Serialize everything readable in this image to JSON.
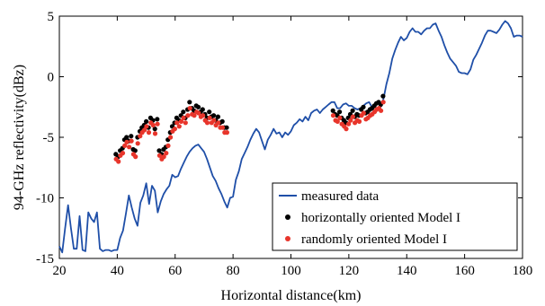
{
  "chart_data": {
    "type": "line",
    "xlabel": "Horizontal distance(km)",
    "ylabel": "94-GHz reflectivity(dBz)",
    "xlim": [
      20,
      180
    ],
    "ylim": [
      -15,
      5
    ],
    "xticks": [
      20,
      40,
      60,
      80,
      100,
      120,
      140,
      160,
      180
    ],
    "yticks": [
      5,
      0,
      -5,
      -10,
      -15
    ],
    "legend_position": "bottom-right",
    "series": [
      {
        "name": "measured data",
        "style": "line",
        "color": "#1f4fa8",
        "points": [
          [
            20,
            -14.0
          ],
          [
            21,
            -14.5
          ],
          [
            22,
            -12.5
          ],
          [
            23,
            -10.6
          ],
          [
            24,
            -12.5
          ],
          [
            25,
            -14.2
          ],
          [
            26,
            -14.2
          ],
          [
            27,
            -11.5
          ],
          [
            28,
            -14.3
          ],
          [
            29,
            -14.4
          ],
          [
            30,
            -11.2
          ],
          [
            31,
            -11.7
          ],
          [
            32,
            -12.0
          ],
          [
            33,
            -11.2
          ],
          [
            34,
            -14.2
          ],
          [
            35,
            -14.4
          ],
          [
            36,
            -14.3
          ],
          [
            37,
            -14.3
          ],
          [
            38,
            -14.4
          ],
          [
            39,
            -14.3
          ],
          [
            40,
            -14.3
          ],
          [
            41,
            -13.3
          ],
          [
            42,
            -12.7
          ],
          [
            43,
            -11.3
          ],
          [
            44,
            -9.8
          ],
          [
            45,
            -10.8
          ],
          [
            46,
            -11.7
          ],
          [
            47,
            -12.3
          ],
          [
            48,
            -10.4
          ],
          [
            49,
            -9.8
          ],
          [
            50,
            -8.8
          ],
          [
            51,
            -10.5
          ],
          [
            52,
            -9.0
          ],
          [
            53,
            -9.4
          ],
          [
            54,
            -11.2
          ],
          [
            55,
            -10.3
          ],
          [
            56,
            -9.7
          ],
          [
            57,
            -9.3
          ],
          [
            58,
            -9.0
          ],
          [
            59,
            -8.1
          ],
          [
            60,
            -8.3
          ],
          [
            61,
            -8.2
          ],
          [
            62,
            -7.6
          ],
          [
            63,
            -7.1
          ],
          [
            64,
            -6.6
          ],
          [
            65,
            -6.2
          ],
          [
            66,
            -5.9
          ],
          [
            67,
            -5.7
          ],
          [
            68,
            -5.6
          ],
          [
            69,
            -5.9
          ],
          [
            70,
            -6.2
          ],
          [
            71,
            -6.8
          ],
          [
            72,
            -7.5
          ],
          [
            73,
            -8.2
          ],
          [
            74,
            -8.6
          ],
          [
            75,
            -9.2
          ],
          [
            76,
            -9.7
          ],
          [
            77,
            -10.3
          ],
          [
            78,
            -10.8
          ],
          [
            79,
            -10.0
          ],
          [
            80,
            -9.9
          ],
          [
            81,
            -8.5
          ],
          [
            82,
            -7.8
          ],
          [
            83,
            -6.8
          ],
          [
            84,
            -6.3
          ],
          [
            85,
            -5.8
          ],
          [
            86,
            -5.2
          ],
          [
            87,
            -4.7
          ],
          [
            88,
            -4.3
          ],
          [
            89,
            -4.6
          ],
          [
            90,
            -5.3
          ],
          [
            91,
            -6.0
          ],
          [
            92,
            -5.2
          ],
          [
            93,
            -4.8
          ],
          [
            94,
            -4.3
          ],
          [
            95,
            -4.7
          ],
          [
            96,
            -4.6
          ],
          [
            97,
            -5.0
          ],
          [
            98,
            -4.6
          ],
          [
            99,
            -4.8
          ],
          [
            100,
            -4.5
          ],
          [
            101,
            -4.0
          ],
          [
            102,
            -3.8
          ],
          [
            103,
            -3.5
          ],
          [
            104,
            -3.7
          ],
          [
            105,
            -3.3
          ],
          [
            106,
            -3.6
          ],
          [
            107,
            -3.0
          ],
          [
            108,
            -2.8
          ],
          [
            109,
            -2.7
          ],
          [
            110,
            -3.0
          ],
          [
            111,
            -2.7
          ],
          [
            112,
            -2.5
          ],
          [
            113,
            -2.3
          ],
          [
            114,
            -2.1
          ],
          [
            115,
            -2.1
          ],
          [
            116,
            -2.6
          ],
          [
            117,
            -2.6
          ],
          [
            118,
            -2.3
          ],
          [
            119,
            -2.2
          ],
          [
            120,
            -2.4
          ],
          [
            121,
            -2.4
          ],
          [
            122,
            -2.6
          ],
          [
            123,
            -2.7
          ],
          [
            124,
            -2.6
          ],
          [
            125,
            -2.4
          ],
          [
            126,
            -2.2
          ],
          [
            127,
            -2.1
          ],
          [
            128,
            -2.5
          ],
          [
            129,
            -2.5
          ],
          [
            130,
            -2.7
          ],
          [
            131,
            -2.5
          ],
          [
            132,
            -1.8
          ],
          [
            133,
            -0.6
          ],
          [
            134,
            0.3
          ],
          [
            135,
            1.5
          ],
          [
            136,
            2.2
          ],
          [
            137,
            2.8
          ],
          [
            138,
            3.3
          ],
          [
            139,
            3.0
          ],
          [
            140,
            3.2
          ],
          [
            141,
            3.7
          ],
          [
            142,
            4.0
          ],
          [
            143,
            3.7
          ],
          [
            144,
            3.7
          ],
          [
            145,
            3.5
          ],
          [
            146,
            3.8
          ],
          [
            147,
            4.0
          ],
          [
            148,
            4.0
          ],
          [
            149,
            4.3
          ],
          [
            150,
            4.4
          ],
          [
            151,
            3.8
          ],
          [
            152,
            3.3
          ],
          [
            153,
            2.6
          ],
          [
            154,
            2.0
          ],
          [
            155,
            1.5
          ],
          [
            156,
            1.2
          ],
          [
            157,
            0.9
          ],
          [
            158,
            0.4
          ],
          [
            159,
            0.3
          ],
          [
            160,
            0.3
          ],
          [
            161,
            0.2
          ],
          [
            162,
            0.6
          ],
          [
            163,
            1.4
          ],
          [
            164,
            1.8
          ],
          [
            165,
            2.3
          ],
          [
            166,
            2.8
          ],
          [
            167,
            3.4
          ],
          [
            168,
            3.8
          ],
          [
            169,
            3.8
          ],
          [
            170,
            3.7
          ],
          [
            171,
            3.6
          ],
          [
            172,
            3.9
          ],
          [
            173,
            4.3
          ],
          [
            174,
            4.6
          ],
          [
            175,
            4.4
          ],
          [
            176,
            4.0
          ],
          [
            177,
            3.3
          ],
          [
            178,
            3.4
          ],
          [
            179,
            3.4
          ],
          [
            180,
            3.3
          ]
        ]
      },
      {
        "name": "horizontally oriented Model I",
        "style": "markers",
        "color": "#000000",
        "points": [
          [
            39.5,
            -6.4
          ],
          [
            40.3,
            -6.6
          ],
          [
            41.0,
            -6.1
          ],
          [
            41.8,
            -5.9
          ],
          [
            42.5,
            -5.2
          ],
          [
            43.2,
            -5.0
          ],
          [
            44.0,
            -5.3
          ],
          [
            44.8,
            -4.9
          ],
          [
            45.5,
            -6.0
          ],
          [
            46.2,
            -6.1
          ],
          [
            47.0,
            -5.0
          ],
          [
            47.8,
            -4.5
          ],
          [
            48.5,
            -4.2
          ],
          [
            49.3,
            -4.0
          ],
          [
            50.0,
            -3.7
          ],
          [
            50.8,
            -4.2
          ],
          [
            51.5,
            -3.4
          ],
          [
            52.3,
            -3.6
          ],
          [
            53.0,
            -4.3
          ],
          [
            53.8,
            -3.5
          ],
          [
            54.5,
            -6.1
          ],
          [
            55.3,
            -6.4
          ],
          [
            56.0,
            -6.0
          ],
          [
            56.8,
            -5.8
          ],
          [
            57.5,
            -5.2
          ],
          [
            58.3,
            -4.6
          ],
          [
            59.0,
            -4.1
          ],
          [
            59.8,
            -3.8
          ],
          [
            60.5,
            -3.4
          ],
          [
            61.3,
            -3.6
          ],
          [
            62.0,
            -3.2
          ],
          [
            62.8,
            -2.9
          ],
          [
            63.5,
            -3.4
          ],
          [
            64.3,
            -2.7
          ],
          [
            65.0,
            -2.1
          ],
          [
            65.8,
            -2.6
          ],
          [
            66.5,
            -2.8
          ],
          [
            67.3,
            -2.4
          ],
          [
            68.0,
            -2.5
          ],
          [
            68.8,
            -2.9
          ],
          [
            69.5,
            -2.7
          ],
          [
            70.3,
            -3.1
          ],
          [
            71.0,
            -3.4
          ],
          [
            71.8,
            -2.9
          ],
          [
            72.5,
            -3.3
          ],
          [
            73.3,
            -3.2
          ],
          [
            74.0,
            -3.6
          ],
          [
            74.8,
            -3.3
          ],
          [
            75.5,
            -3.8
          ],
          [
            76.3,
            -3.7
          ],
          [
            77.0,
            -4.2
          ],
          [
            77.8,
            -4.2
          ],
          [
            114.5,
            -2.8
          ],
          [
            115.3,
            -3.1
          ],
          [
            116.0,
            -3.2
          ],
          [
            116.8,
            -2.9
          ],
          [
            117.5,
            -3.4
          ],
          [
            118.3,
            -3.6
          ],
          [
            119.0,
            -3.8
          ],
          [
            119.8,
            -3.4
          ],
          [
            120.5,
            -3.1
          ],
          [
            121.3,
            -2.8
          ],
          [
            122.0,
            -3.3
          ],
          [
            122.8,
            -3.1
          ],
          [
            123.5,
            -3.2
          ],
          [
            124.3,
            -2.7
          ],
          [
            125.0,
            -2.5
          ],
          [
            125.8,
            -3.0
          ],
          [
            126.5,
            -2.9
          ],
          [
            127.3,
            -2.7
          ],
          [
            128.0,
            -2.6
          ],
          [
            128.8,
            -2.4
          ],
          [
            129.5,
            -2.2
          ],
          [
            130.3,
            -2.1
          ],
          [
            131.0,
            -2.3
          ],
          [
            131.8,
            -1.6
          ]
        ]
      },
      {
        "name": "randomly oriented Model I",
        "style": "markers",
        "color": "#e8352b",
        "points": [
          [
            39.6,
            -6.8
          ],
          [
            40.4,
            -7.0
          ],
          [
            41.1,
            -6.5
          ],
          [
            41.9,
            -6.3
          ],
          [
            42.6,
            -5.7
          ],
          [
            43.3,
            -5.4
          ],
          [
            44.1,
            -5.8
          ],
          [
            44.9,
            -5.3
          ],
          [
            45.6,
            -6.4
          ],
          [
            46.3,
            -6.6
          ],
          [
            47.1,
            -5.5
          ],
          [
            47.9,
            -4.9
          ],
          [
            48.6,
            -4.6
          ],
          [
            49.4,
            -4.4
          ],
          [
            50.1,
            -4.1
          ],
          [
            50.9,
            -4.6
          ],
          [
            51.6,
            -3.8
          ],
          [
            52.4,
            -4.0
          ],
          [
            53.1,
            -4.7
          ],
          [
            53.9,
            -3.9
          ],
          [
            54.6,
            -6.5
          ],
          [
            55.4,
            -6.8
          ],
          [
            56.1,
            -6.6
          ],
          [
            56.9,
            -6.3
          ],
          [
            57.6,
            -5.7
          ],
          [
            58.4,
            -5.0
          ],
          [
            59.1,
            -4.5
          ],
          [
            59.9,
            -4.3
          ],
          [
            60.6,
            -3.8
          ],
          [
            61.4,
            -4.1
          ],
          [
            62.1,
            -3.7
          ],
          [
            62.9,
            -3.4
          ],
          [
            63.6,
            -3.8
          ],
          [
            64.4,
            -3.2
          ],
          [
            65.1,
            -2.6
          ],
          [
            65.9,
            -3.1
          ],
          [
            66.6,
            -3.2
          ],
          [
            67.4,
            -2.9
          ],
          [
            68.1,
            -3.0
          ],
          [
            68.9,
            -3.3
          ],
          [
            69.6,
            -3.2
          ],
          [
            70.4,
            -3.6
          ],
          [
            71.1,
            -3.8
          ],
          [
            71.9,
            -3.4
          ],
          [
            72.6,
            -3.8
          ],
          [
            73.4,
            -3.6
          ],
          [
            74.1,
            -4.0
          ],
          [
            74.9,
            -3.8
          ],
          [
            75.6,
            -4.2
          ],
          [
            76.4,
            -4.2
          ],
          [
            77.1,
            -4.6
          ],
          [
            77.9,
            -4.6
          ],
          [
            114.6,
            -3.2
          ],
          [
            115.4,
            -3.6
          ],
          [
            116.1,
            -3.7
          ],
          [
            116.9,
            -3.4
          ],
          [
            117.6,
            -3.9
          ],
          [
            118.4,
            -4.1
          ],
          [
            119.1,
            -4.3
          ],
          [
            119.9,
            -3.9
          ],
          [
            120.6,
            -3.6
          ],
          [
            121.4,
            -3.3
          ],
          [
            122.1,
            -3.8
          ],
          [
            122.9,
            -3.6
          ],
          [
            123.6,
            -3.7
          ],
          [
            124.4,
            -3.2
          ],
          [
            125.1,
            -3.0
          ],
          [
            125.9,
            -3.5
          ],
          [
            126.6,
            -3.4
          ],
          [
            127.4,
            -3.2
          ],
          [
            128.1,
            -3.1
          ],
          [
            128.9,
            -2.9
          ],
          [
            129.6,
            -2.7
          ],
          [
            130.4,
            -2.6
          ],
          [
            131.1,
            -2.8
          ],
          [
            131.9,
            -2.1
          ]
        ]
      }
    ]
  }
}
